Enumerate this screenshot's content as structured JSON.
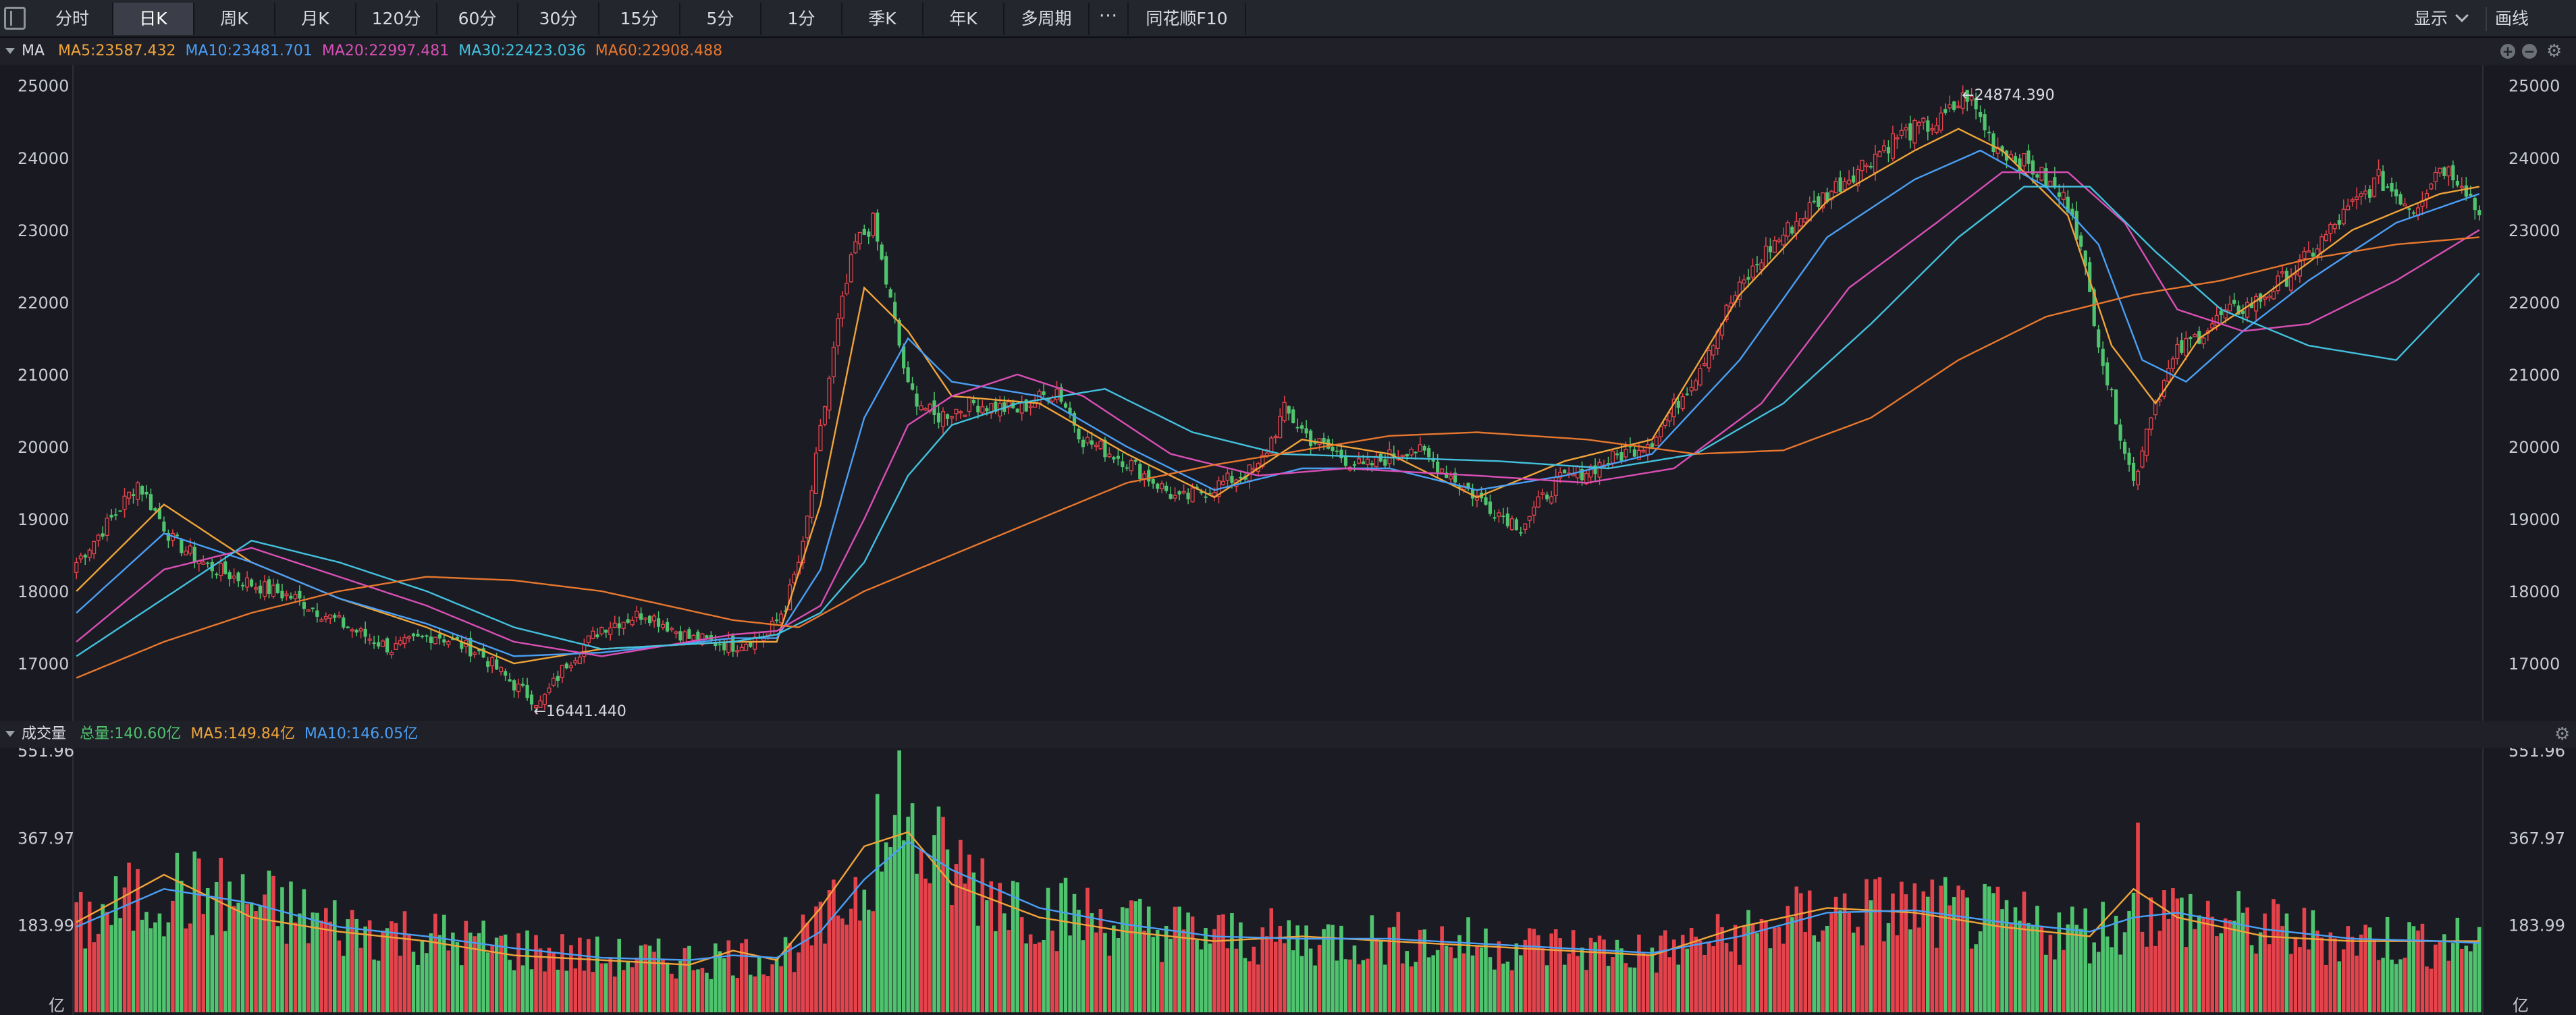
{
  "toolbar": {
    "tabs": [
      {
        "label": "分时",
        "w": 120
      },
      {
        "label": "日K",
        "w": 120,
        "active": true
      },
      {
        "label": "周K",
        "w": 120
      },
      {
        "label": "月K",
        "w": 120
      },
      {
        "label": "120分",
        "w": 120
      },
      {
        "label": "60分",
        "w": 120
      },
      {
        "label": "30分",
        "w": 120
      },
      {
        "label": "15分",
        "w": 120
      },
      {
        "label": "5分",
        "w": 120
      },
      {
        "label": "1分",
        "w": 120
      },
      {
        "label": "季K",
        "w": 120
      },
      {
        "label": "年K",
        "w": 120
      },
      {
        "label": "多周期",
        "w": 126
      }
    ],
    "more_label": "···",
    "f10_label": "同花顺F10",
    "display_label": "显示",
    "draw_label": "画线"
  },
  "price_pane": {
    "indicator": "MA",
    "legend": [
      {
        "label": "MA5:23587.432",
        "color": "#f0a43a"
      },
      {
        "label": "MA10:23481.701",
        "color": "#4a9ff5"
      },
      {
        "label": "MA20:22997.481",
        "color": "#d94fb5"
      },
      {
        "label": "MA30:22423.036",
        "color": "#43c1de"
      },
      {
        "label": "MA60:22908.488",
        "color": "#e8772e"
      }
    ],
    "y_ticks": [
      "25000",
      "24000",
      "23000",
      "22000",
      "21000",
      "20000",
      "19000",
      "18000",
      "17000"
    ],
    "high_label": "←24874.390",
    "low_label": "←16441.440"
  },
  "volume_pane": {
    "indicator": "成交量",
    "legend": [
      {
        "label": "总量:140.60亿",
        "color": "#4fc36e"
      },
      {
        "label": "MA5:149.84亿",
        "color": "#f0a43a"
      },
      {
        "label": "MA10:146.05亿",
        "color": "#4a9ff5"
      }
    ],
    "y_ticks": [
      "551.96",
      "367.97",
      "183.99"
    ],
    "unit": "亿"
  },
  "colors": {
    "up": "#e5434c",
    "down": "#4fc36e",
    "bg": "#191a21"
  },
  "chart_data": {
    "type": "candlestick",
    "price_range": [
      16300,
      25100
    ],
    "volume_max": 551.96,
    "key_points": [
      [
        0,
        18400
      ],
      [
        8,
        19000
      ],
      [
        14,
        19500
      ],
      [
        22,
        18700
      ],
      [
        30,
        18350
      ],
      [
        40,
        18100
      ],
      [
        50,
        17900
      ],
      [
        62,
        17500
      ],
      [
        72,
        17200
      ],
      [
        82,
        17400
      ],
      [
        92,
        17150
      ],
      [
        100,
        16700
      ],
      [
        106,
        16441
      ],
      [
        112,
        17000
      ],
      [
        120,
        17500
      ],
      [
        130,
        17700
      ],
      [
        140,
        17350
      ],
      [
        150,
        17250
      ],
      [
        158,
        17400
      ],
      [
        162,
        17800
      ],
      [
        166,
        18600
      ],
      [
        170,
        20200
      ],
      [
        174,
        21700
      ],
      [
        178,
        22800
      ],
      [
        182,
        23100
      ],
      [
        186,
        22000
      ],
      [
        190,
        20800
      ],
      [
        196,
        20400
      ],
      [
        205,
        20600
      ],
      [
        215,
        20500
      ],
      [
        224,
        20800
      ],
      [
        230,
        20100
      ],
      [
        240,
        19800
      ],
      [
        252,
        19250
      ],
      [
        262,
        19500
      ],
      [
        270,
        19700
      ],
      [
        276,
        20500
      ],
      [
        282,
        20100
      ],
      [
        294,
        19700
      ],
      [
        305,
        20000
      ],
      [
        312,
        19700
      ],
      [
        322,
        19200
      ],
      [
        330,
        18900
      ],
      [
        338,
        19500
      ],
      [
        350,
        19800
      ],
      [
        360,
        20100
      ],
      [
        370,
        21000
      ],
      [
        378,
        22000
      ],
      [
        386,
        22700
      ],
      [
        396,
        23300
      ],
      [
        406,
        23800
      ],
      [
        416,
        24300
      ],
      [
        426,
        24500
      ],
      [
        432,
        24874
      ],
      [
        438,
        24200
      ],
      [
        448,
        23800
      ],
      [
        456,
        23300
      ],
      [
        464,
        20900
      ],
      [
        470,
        19500
      ],
      [
        474,
        20500
      ],
      [
        480,
        21300
      ],
      [
        490,
        21800
      ],
      [
        498,
        22000
      ],
      [
        508,
        22500
      ],
      [
        518,
        23200
      ],
      [
        526,
        23700
      ],
      [
        534,
        23300
      ],
      [
        540,
        23900
      ],
      [
        545,
        23700
      ],
      [
        549,
        23200
      ]
    ],
    "ma_lines": [
      {
        "name": "MA5",
        "color": "#f0a43a",
        "points": [
          [
            0,
            18000
          ],
          [
            20,
            19200
          ],
          [
            40,
            18400
          ],
          [
            60,
            17900
          ],
          [
            80,
            17500
          ],
          [
            100,
            17000
          ],
          [
            120,
            17200
          ],
          [
            150,
            17300
          ],
          [
            160,
            17300
          ],
          [
            170,
            19200
          ],
          [
            180,
            22200
          ],
          [
            190,
            21600
          ],
          [
            200,
            20700
          ],
          [
            220,
            20600
          ],
          [
            240,
            19900
          ],
          [
            260,
            19300
          ],
          [
            280,
            20100
          ],
          [
            300,
            19900
          ],
          [
            320,
            19300
          ],
          [
            340,
            19800
          ],
          [
            360,
            20100
          ],
          [
            380,
            22100
          ],
          [
            400,
            23400
          ],
          [
            420,
            24100
          ],
          [
            430,
            24400
          ],
          [
            440,
            24100
          ],
          [
            455,
            23200
          ],
          [
            465,
            21400
          ],
          [
            475,
            20600
          ],
          [
            485,
            21500
          ],
          [
            500,
            22100
          ],
          [
            520,
            23000
          ],
          [
            540,
            23500
          ],
          [
            549,
            23600
          ]
        ]
      },
      {
        "name": "MA10",
        "color": "#4a9ff5",
        "points": [
          [
            0,
            17700
          ],
          [
            20,
            18800
          ],
          [
            40,
            18400
          ],
          [
            60,
            17900
          ],
          [
            80,
            17550
          ],
          [
            100,
            17100
          ],
          [
            120,
            17150
          ],
          [
            150,
            17350
          ],
          [
            160,
            17350
          ],
          [
            170,
            18300
          ],
          [
            180,
            20400
          ],
          [
            190,
            21500
          ],
          [
            200,
            20900
          ],
          [
            220,
            20700
          ],
          [
            240,
            20000
          ],
          [
            260,
            19400
          ],
          [
            280,
            19700
          ],
          [
            300,
            19700
          ],
          [
            320,
            19400
          ],
          [
            340,
            19600
          ],
          [
            360,
            19900
          ],
          [
            380,
            21200
          ],
          [
            400,
            22900
          ],
          [
            420,
            23700
          ],
          [
            435,
            24100
          ],
          [
            450,
            23600
          ],
          [
            462,
            22800
          ],
          [
            472,
            21200
          ],
          [
            482,
            20900
          ],
          [
            495,
            21600
          ],
          [
            510,
            22300
          ],
          [
            530,
            23100
          ],
          [
            549,
            23500
          ]
        ]
      },
      {
        "name": "MA20",
        "color": "#d94fb5",
        "points": [
          [
            0,
            17300
          ],
          [
            20,
            18300
          ],
          [
            40,
            18600
          ],
          [
            60,
            18200
          ],
          [
            80,
            17800
          ],
          [
            100,
            17300
          ],
          [
            120,
            17100
          ],
          [
            150,
            17400
          ],
          [
            160,
            17450
          ],
          [
            170,
            17800
          ],
          [
            180,
            19000
          ],
          [
            190,
            20300
          ],
          [
            200,
            20700
          ],
          [
            215,
            21000
          ],
          [
            230,
            20700
          ],
          [
            250,
            19900
          ],
          [
            270,
            19600
          ],
          [
            290,
            19700
          ],
          [
            320,
            19600
          ],
          [
            345,
            19500
          ],
          [
            365,
            19700
          ],
          [
            385,
            20600
          ],
          [
            405,
            22200
          ],
          [
            425,
            23100
          ],
          [
            440,
            23800
          ],
          [
            455,
            23800
          ],
          [
            468,
            23100
          ],
          [
            480,
            21900
          ],
          [
            495,
            21600
          ],
          [
            510,
            21700
          ],
          [
            530,
            22300
          ],
          [
            549,
            23000
          ]
        ]
      },
      {
        "name": "MA30",
        "color": "#43c1de",
        "points": [
          [
            0,
            17100
          ],
          [
            20,
            17900
          ],
          [
            40,
            18700
          ],
          [
            60,
            18400
          ],
          [
            80,
            18000
          ],
          [
            100,
            17500
          ],
          [
            120,
            17200
          ],
          [
            150,
            17300
          ],
          [
            160,
            17400
          ],
          [
            170,
            17700
          ],
          [
            180,
            18400
          ],
          [
            190,
            19600
          ],
          [
            200,
            20300
          ],
          [
            215,
            20600
          ],
          [
            235,
            20800
          ],
          [
            255,
            20200
          ],
          [
            275,
            19900
          ],
          [
            300,
            19850
          ],
          [
            325,
            19800
          ],
          [
            350,
            19700
          ],
          [
            370,
            19900
          ],
          [
            390,
            20600
          ],
          [
            410,
            21700
          ],
          [
            430,
            22900
          ],
          [
            445,
            23600
          ],
          [
            460,
            23600
          ],
          [
            475,
            22700
          ],
          [
            490,
            21900
          ],
          [
            510,
            21400
          ],
          [
            530,
            21200
          ],
          [
            549,
            22400
          ]
        ]
      },
      {
        "name": "MA60",
        "color": "#e8772e",
        "points": [
          [
            0,
            16800
          ],
          [
            20,
            17300
          ],
          [
            40,
            17700
          ],
          [
            60,
            18000
          ],
          [
            80,
            18200
          ],
          [
            100,
            18150
          ],
          [
            120,
            18000
          ],
          [
            150,
            17600
          ],
          [
            165,
            17500
          ],
          [
            180,
            18000
          ],
          [
            200,
            18500
          ],
          [
            220,
            19000
          ],
          [
            240,
            19500
          ],
          [
            260,
            19750
          ],
          [
            280,
            19950
          ],
          [
            300,
            20150
          ],
          [
            320,
            20200
          ],
          [
            345,
            20100
          ],
          [
            370,
            19900
          ],
          [
            390,
            19950
          ],
          [
            410,
            20400
          ],
          [
            430,
            21200
          ],
          [
            450,
            21800
          ],
          [
            470,
            22100
          ],
          [
            490,
            22300
          ],
          [
            510,
            22600
          ],
          [
            530,
            22800
          ],
          [
            549,
            22900
          ]
        ]
      }
    ],
    "volume_ma": [
      {
        "name": "MA5",
        "color": "#f0a43a",
        "points": [
          [
            0,
            190
          ],
          [
            20,
            290
          ],
          [
            40,
            200
          ],
          [
            60,
            170
          ],
          [
            80,
            150
          ],
          [
            100,
            120
          ],
          [
            120,
            110
          ],
          [
            140,
            100
          ],
          [
            150,
            130
          ],
          [
            160,
            110
          ],
          [
            170,
            220
          ],
          [
            180,
            350
          ],
          [
            190,
            380
          ],
          [
            200,
            270
          ],
          [
            220,
            200
          ],
          [
            240,
            170
          ],
          [
            260,
            150
          ],
          [
            280,
            160
          ],
          [
            300,
            150
          ],
          [
            320,
            140
          ],
          [
            340,
            130
          ],
          [
            360,
            120
          ],
          [
            380,
            180
          ],
          [
            400,
            220
          ],
          [
            420,
            210
          ],
          [
            440,
            180
          ],
          [
            460,
            160
          ],
          [
            470,
            260
          ],
          [
            480,
            200
          ],
          [
            500,
            160
          ],
          [
            520,
            150
          ],
          [
            540,
            150
          ],
          [
            549,
            150
          ]
        ]
      },
      {
        "name": "MA10",
        "color": "#4a9ff5",
        "points": [
          [
            0,
            180
          ],
          [
            20,
            260
          ],
          [
            40,
            230
          ],
          [
            60,
            180
          ],
          [
            80,
            160
          ],
          [
            100,
            135
          ],
          [
            120,
            115
          ],
          [
            140,
            110
          ],
          [
            150,
            120
          ],
          [
            160,
            115
          ],
          [
            170,
            170
          ],
          [
            180,
            280
          ],
          [
            190,
            360
          ],
          [
            200,
            300
          ],
          [
            220,
            220
          ],
          [
            240,
            185
          ],
          [
            260,
            160
          ],
          [
            280,
            155
          ],
          [
            300,
            155
          ],
          [
            320,
            145
          ],
          [
            340,
            135
          ],
          [
            360,
            125
          ],
          [
            380,
            160
          ],
          [
            400,
            210
          ],
          [
            420,
            215
          ],
          [
            440,
            190
          ],
          [
            460,
            170
          ],
          [
            470,
            200
          ],
          [
            480,
            210
          ],
          [
            500,
            175
          ],
          [
            520,
            155
          ],
          [
            540,
            150
          ],
          [
            549,
            146
          ]
        ]
      }
    ]
  }
}
